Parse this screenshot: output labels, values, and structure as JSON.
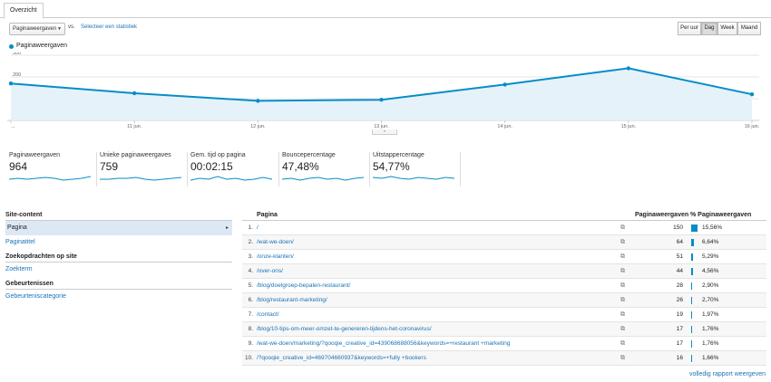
{
  "tabs": [
    "Overzicht"
  ],
  "controls": {
    "metric": "Paginaweergaven",
    "vs": "vs.",
    "select_stat": "Selecteer een statistiek",
    "periods": [
      "Per uur",
      "Dag",
      "Week",
      "Maand"
    ],
    "active_period": "Dag"
  },
  "chart_data": {
    "type": "area",
    "series": [
      {
        "name": "Paginaweergaven",
        "values": [
          170,
          125,
          90,
          95,
          165,
          240,
          120
        ]
      }
    ],
    "x": [
      "...",
      "11 jun.",
      "12 jun.",
      "13 jun.",
      "14 jun.",
      "15 jun.",
      "16 jun."
    ],
    "yticks": [
      100,
      200,
      300
    ],
    "ylim": [
      0,
      300
    ],
    "legend": "top-left",
    "grid": true,
    "color": "#058dc7"
  },
  "summary": [
    {
      "label": "Paginaweergaven",
      "value": "964"
    },
    {
      "label": "Unieke paginaweergaves",
      "value": "759"
    },
    {
      "label": "Gem. tijd op pagina",
      "value": "00:02:15"
    },
    {
      "label": "Bouncepercentage",
      "value": "47,48%"
    },
    {
      "label": "Uitstappercentage",
      "value": "54,77%"
    }
  ],
  "site_content": {
    "heading": "Site-content",
    "items": [
      "Pagina",
      "Paginatitel"
    ]
  },
  "site_search": {
    "heading": "Zoekopdrachten op site",
    "items": [
      "Zoekterm"
    ]
  },
  "events": {
    "heading": "Gebeurtenissen",
    "items": [
      "Gebeurteniscategorie"
    ]
  },
  "table": {
    "headers": {
      "page": "Pagina",
      "views": "Paginaweergaven",
      "pct": "% Paginaweergaven"
    },
    "rows": [
      {
        "idx": "1.",
        "path": "/",
        "views": "150",
        "pct": "15,56%",
        "share": 0.1556
      },
      {
        "idx": "2.",
        "path": "/wat-we-doen/",
        "views": "64",
        "pct": "6,64%",
        "share": 0.0664
      },
      {
        "idx": "3.",
        "path": "/onze-klanten/",
        "views": "51",
        "pct": "5,29%",
        "share": 0.0529
      },
      {
        "idx": "4.",
        "path": "/over-ons/",
        "views": "44",
        "pct": "4,56%",
        "share": 0.0456
      },
      {
        "idx": "5.",
        "path": "/blog/doelgroep-bepalen-restaurant/",
        "views": "28",
        "pct": "2,90%",
        "share": 0.029
      },
      {
        "idx": "6.",
        "path": "/blog/restaurant-marketing/",
        "views": "26",
        "pct": "2,70%",
        "share": 0.027
      },
      {
        "idx": "7.",
        "path": "/contact/",
        "views": "19",
        "pct": "1,97%",
        "share": 0.0197
      },
      {
        "idx": "8.",
        "path": "/blog/10-tips-om-meer-omzet-te-genereren-tijdens-het-coronavirus/",
        "views": "17",
        "pct": "1,76%",
        "share": 0.0176
      },
      {
        "idx": "9.",
        "path": "/wat-we-doen/marketing/?qooqie_creative_id=439068688056&keywords=+restaurant +marketing",
        "views": "17",
        "pct": "1,76%",
        "share": 0.0176
      },
      {
        "idx": "10.",
        "path": "/?qooqie_creative_id=469704660937&keywords=+fully +bookers",
        "views": "16",
        "pct": "1,66%",
        "share": 0.0166
      }
    ]
  },
  "full_report": "volledig rapport weergeven"
}
